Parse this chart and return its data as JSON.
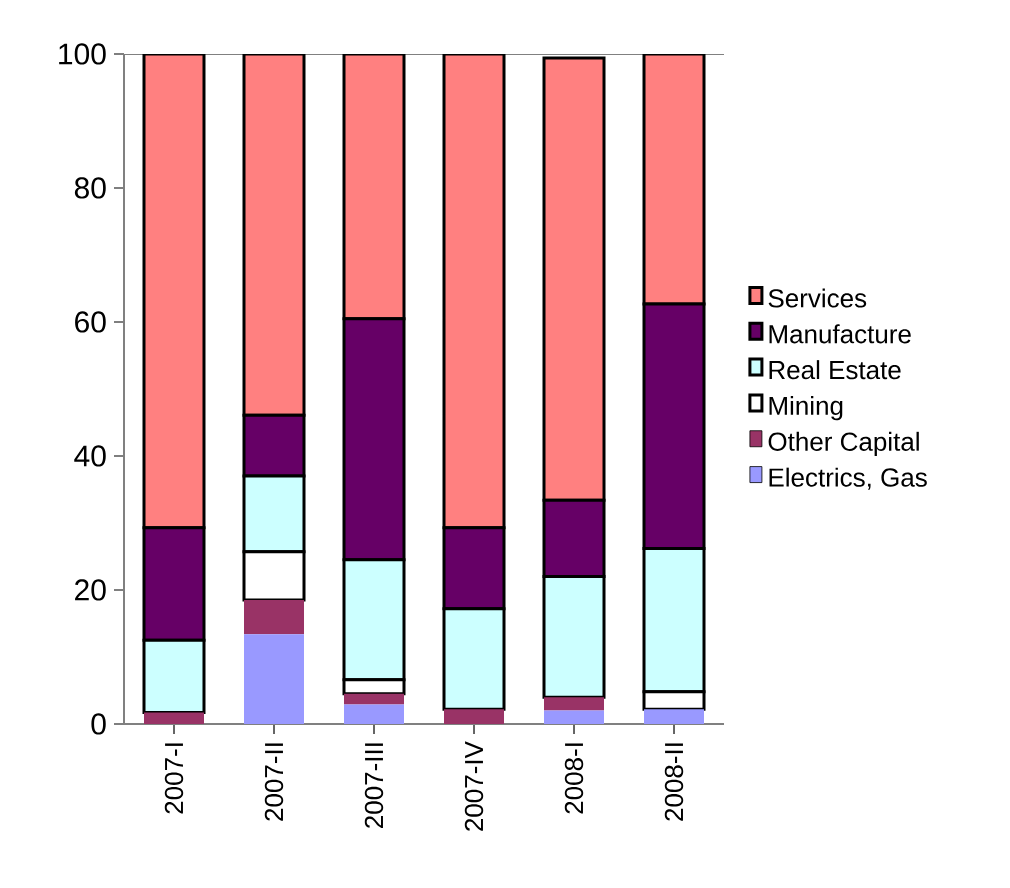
{
  "chart_data": {
    "type": "bar",
    "stacked": true,
    "categories": [
      "2007-I",
      "2007-II",
      "2007-III",
      "2007-IV",
      "2008-I",
      "2008-II"
    ],
    "series": [
      {
        "name": "Electrics, Gas",
        "color": "#9999ff",
        "values": [
          0,
          13.4,
          2.9,
          0,
          2.0,
          2.2
        ]
      },
      {
        "name": "Other Capital",
        "color": "#993366",
        "values": [
          1.7,
          5.1,
          1.6,
          2.2,
          2.0,
          0
        ]
      },
      {
        "name": "Mining",
        "color": "#ffffff",
        "values": [
          0,
          7.2,
          2.1,
          0,
          0,
          2.6
        ]
      },
      {
        "name": "Real Estate",
        "color": "#ccffff",
        "values": [
          10.8,
          11.3,
          17.9,
          15.0,
          18.0,
          21.4
        ]
      },
      {
        "name": "Manufacture",
        "color": "#660066",
        "values": [
          16.8,
          9.1,
          36.0,
          12.1,
          11.4,
          36.5
        ]
      },
      {
        "name": "Services",
        "color": "#ff8080",
        "values": [
          70.7,
          53.9,
          39.5,
          70.7,
          66.0,
          37.3
        ]
      }
    ],
    "ylim": [
      0,
      100
    ],
    "yticks": [
      0,
      20,
      40,
      60,
      80,
      100
    ],
    "legend": "right",
    "grid": false
  }
}
